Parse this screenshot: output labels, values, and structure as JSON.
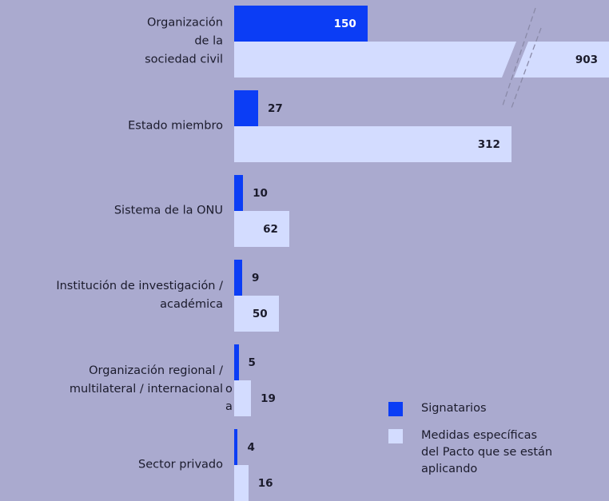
{
  "chart_data": {
    "type": "bar",
    "orientation": "horizontal",
    "categories": [
      "Organización\nde la\nsociedad civil",
      "Estado miembro",
      "Sistema de la ONU",
      "Institución de investigación /\nacadémica",
      "Organización regional /\nmultilateral / internacional",
      "Sector privado"
    ],
    "series": [
      {
        "name": "Signatarios",
        "color": "#0b3df5",
        "values": [
          150,
          27,
          10,
          9,
          5,
          4
        ]
      },
      {
        "name": "Medidas específicas\ndel Pacto que se están\naplicando",
        "color": "#d3dcff",
        "values": [
          903,
          312,
          62,
          50,
          19,
          16
        ]
      }
    ],
    "annotations": [
      "o",
      "a"
    ]
  }
}
